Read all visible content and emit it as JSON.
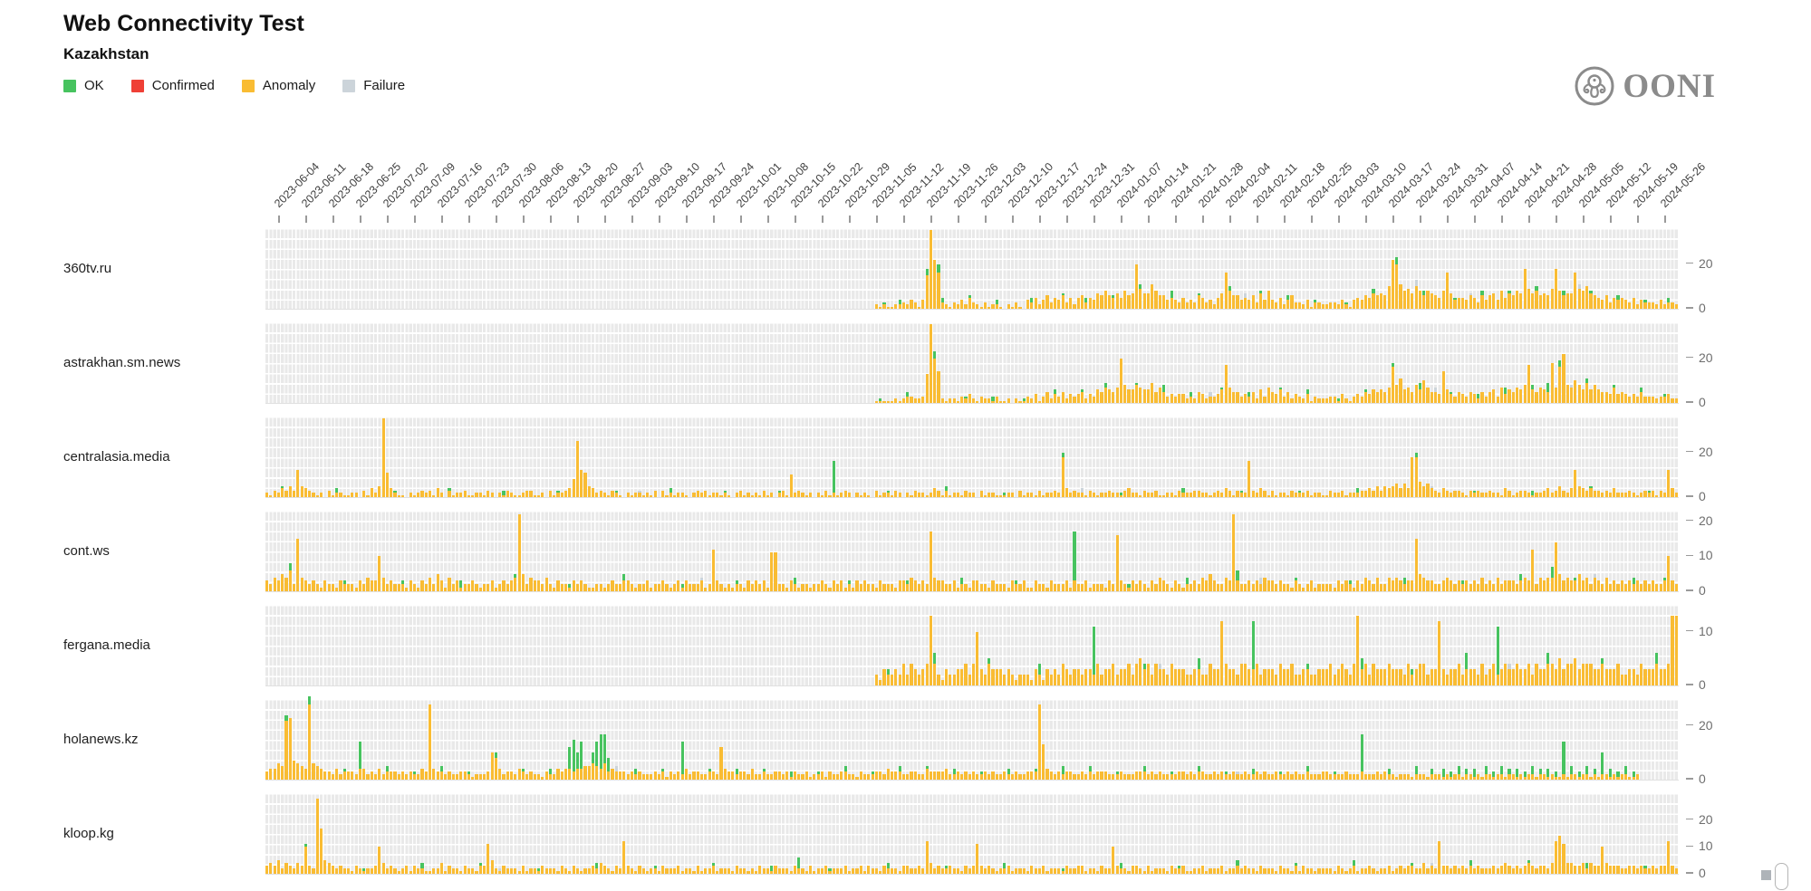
{
  "header": {
    "title": "Web Connectivity Test",
    "subtitle": "Kazakhstan"
  },
  "legend": {
    "items": [
      {
        "label": "OK",
        "color": "#47c35f"
      },
      {
        "label": "Confirmed",
        "color": "#ef4036"
      },
      {
        "label": "Anomaly",
        "color": "#f9bc33"
      },
      {
        "label": "Failure",
        "color": "#ccd4da"
      }
    ]
  },
  "logo": {
    "text": "OONI"
  },
  "colors": {
    "ok": "#47c35f",
    "confirmed": "#ef4036",
    "anomaly": "#f9bc33",
    "failure": "#ccd4da"
  },
  "chart_data": {
    "type": "bar",
    "stacking": [
      "anomaly",
      "ok",
      "failure"
    ],
    "x_start_date": "2023-06-01",
    "days": 364,
    "encoding": "each char of 'anomaly' is a base-36 daily measurement count starting at day 'offset'; 'ok'/'failure' are sparse {dayIndex:count} maps",
    "week_tick_dates": [
      "2023-06-04",
      "2023-06-11",
      "2023-06-18",
      "2023-06-25",
      "2023-07-02",
      "2023-07-09",
      "2023-07-16",
      "2023-07-23",
      "2023-07-30",
      "2023-08-06",
      "2023-08-13",
      "2023-08-20",
      "2023-08-27",
      "2023-09-03",
      "2023-09-10",
      "2023-09-17",
      "2023-09-24",
      "2023-10-01",
      "2023-10-08",
      "2023-10-15",
      "2023-10-22",
      "2023-10-29",
      "2023-11-05",
      "2023-11-12",
      "2023-11-19",
      "2023-11-26",
      "2023-12-03",
      "2023-12-10",
      "2023-12-17",
      "2023-12-24",
      "2023-12-31",
      "2024-01-07",
      "2024-01-14",
      "2024-01-21",
      "2024-01-28",
      "2024-02-04",
      "2024-02-11",
      "2024-02-18",
      "2024-02-25",
      "2024-03-03",
      "2024-03-10",
      "2024-03-17",
      "2024-03-24",
      "2024-03-31",
      "2024-04-07",
      "2024-04-14",
      "2024-04-21",
      "2024-04-28",
      "2024-05-05",
      "2024-05-12",
      "2024-05-19",
      "2024-05-26"
    ],
    "sites": [
      {
        "name": "360tv.ru",
        "ymax": 36,
        "yticks": [
          0,
          20
        ],
        "offset": 154,
        "anomaly": "000212112232431 4fzmg3213242532131221021310435246354635256354768657586 7k977b8664543534365342 57g866454637484352463324133223324214546576 76amkb897a8687658g74554653646748576 87i9786769i8677g98a765463545435243332423 32",
        "ok": {
          "159": 1,
          "163": 2,
          "170": 3,
          "173": 4,
          "174": 2,
          "181": 1,
          "188": 2,
          "197": 2,
          "205": 1,
          "211": 2,
          "218": 1,
          "225": 2,
          "233": 3,
          "240": 1,
          "248": 2,
          "256": 1,
          "263": 2,
          "270": 1,
          "278": 1,
          "285": 2,
          "291": 3,
          "298": 2,
          "306": 1,
          "313": 2,
          "320": 1,
          "327": 2,
          "334": 2,
          "341": 1,
          "348": 2,
          "355": 1,
          "361": 2
        },
        "failure": {
          "252": 2,
          "296": 3,
          "310": 1,
          "338": 2
        }
      },
      {
        "name": "astrakhan.sm.news",
        "ymax": 36,
        "yticks": [
          0,
          20
        ],
        "offset": 154,
        "anomaly": "0001111121233223dzke2122132421322131120211324135243524345243657657k8668766957534344232542334 6h755343526375463524324132223314213435465657g8b67586a7554e64354354253563746 5768h65765i7gm87a869686554745434353332334 22",
        "ok": {
          "158": 1,
          "165": 2,
          "172": 3,
          "180": 1,
          "187": 2,
          "195": 1,
          "203": 2,
          "210": 1,
          "216": 2,
          "224": 1,
          "231": 3,
          "238": 2,
          "246": 1,
          "253": 2,
          "261": 1,
          "268": 2,
          "276": 1,
          "283": 1,
          "290": 2,
          "297": 3,
          "305": 1,
          "312": 2,
          "319": 3,
          "326": 2,
          "330": 4,
          "333": 3,
          "340": 2,
          "347": 1,
          "354": 2,
          "360": 1
        },
        "failure": {
          "243": 2,
          "301": 2,
          "336": 1
        }
      },
      {
        "name": "centralasia.media",
        "ymax": 36,
        "yticks": [
          0,
          20
        ],
        "offset": 0,
        "anomaly": "21324353c54321203122112203142 5zb4211021232314203122311221320213211233112031223 48pcb54232132102122121303121221023231221210231212131202 31a23212021312123202121031221320213221243131221322031221112203122131223 2i4232213212232213422132231122132223322123243132 2g324313122132223122113223122233435354564 64ii756432432332132322322143123321223423532 4c5434332324222321232313 2c42",
        "ok": {
          "4": 1,
          "18": 2,
          "33": 1,
          "47": 1,
          "61": 2,
          "75": 1,
          "90": 1,
          "104": 2,
          "118": 1,
          "132": 1,
          "146": 14,
          "160": 1,
          "175": 2,
          "190": 1,
          "205": 2,
          "220": 1,
          "236": 2,
          "251": 1,
          "266": 1,
          "281": 2,
          "296": 2,
          "311": 1,
          "326": 2,
          "341": 1,
          "356": 1
        },
        "failure": {
          "96": 1,
          "210": 2,
          "300": 1
        }
      },
      {
        "name": "cont.ws",
        "ymax": 23,
        "yticks": [
          0,
          10,
          20
        ],
        "offset": 0,
        "anomaly": "32435462f4323213221322213243 3a4232221321324253142312232122312323 4m524332421322132321122123223321223122321231322231 2c3212122132 3231bb2213212212232132312132322132221332432 32h43322312213322132221322311322132223132231222132g32132321324321321223243532 243m3223232433232213212312222132321324324224343233f5433223432323232423242333234 3c24344e53433534243242323232323232 23a3232",
        "ok": {
          "6": 2,
          "20": 1,
          "35": 1,
          "50": 2,
          "64": 1,
          "78": 1,
          "92": 2,
          "107": 1,
          "121": 1,
          "136": 2,
          "150": 1,
          "165": 1,
          "179": 2,
          "193": 1,
          "208": 14,
          "222": 1,
          "237": 2,
          "250": 3,
          "265": 1,
          "279": 1,
          "293": 2,
          "308": 1,
          "323": 2,
          "331": 3,
          "337": 1,
          "352": 2,
          "360": 1
        },
        "failure": {
          "112": 1,
          "256": 2,
          "342": 1
        }
      },
      {
        "name": "fergana.media",
        "ymax": 15,
        "yticks": [
          0,
          10
        ],
        "offset": 154,
        "anomaly": "00021322324243 234d4213223342 4a3243332321222132132324323323324233423342453424332433322332243 3c43324433423332433422332233342343 24d3424333433324234423 3c3233423332423423433433424334435344534443343334223324 33343 34dd",
        "ok": {
          "160": 1,
          "172": 2,
          "186": 1,
          "199": 2,
          "213": 9,
          "226": 1,
          "240": 2,
          "254": 9,
          "268": 1,
          "282": 2,
          "295": 1,
          "309": 3,
          "317": 9,
          "330": 2,
          "344": 1,
          "358": 2
        },
        "failure": {
          "230": 1,
          "320": 1
        }
      },
      {
        "name": "holanews.kz",
        "ymax": 30,
        "yticks": [
          0,
          20
        ],
        "offset": 0,
        "anomaly": "34465mn7654s654332423332442324233323232243s43323223321222 3a8423324323221322434434455654634333232322232313232423322332c433233242232233231322312231322332213222332433322332243333422323232 23232232232233 3sd43232332232323332223222333232322223323233223232232232232322322323223222332222322232223232212221222122212122122121221221 2212122122121121221221212212122112",
        "ok": {
          "5": 2,
          "11": 3,
          "20": 1,
          "24": 10,
          "31": 2,
          "38": 1,
          "45": 2,
          "52": 1,
          "59": 2,
          "66": 1,
          "73": 2,
          "78": 8,
          "79": 12,
          "80": 6,
          "81": 10,
          "84": 4,
          "85": 9,
          "86": 13,
          "87": 11,
          "88": 5,
          "95": 2,
          "102": 1,
          "107": 12,
          "114": 1,
          "121": 2,
          "128": 1,
          "135": 2,
          "142": 1,
          "149": 2,
          "156": 1,
          "163": 2,
          "170": 1,
          "177": 2,
          "184": 1,
          "191": 2,
          "198": 1,
          "205": 3,
          "212": 2,
          "219": 1,
          "226": 2,
          "233": 1,
          "240": 2,
          "247": 1,
          "254": 2,
          "261": 1,
          "268": 2,
          "275": 1,
          "282": 14,
          "289": 2,
          "296": 3,
          "300": 2,
          "303": 3,
          "305": 2,
          "307": 3,
          "309": 2,
          "311": 3,
          "314": 3,
          "316": 2,
          "318": 3,
          "320": 2,
          "322": 3,
          "324": 2,
          "326": 3,
          "328": 2,
          "330": 3,
          "332": 2,
          "334": 12,
          "336": 3,
          "338": 2,
          "340": 3,
          "342": 2,
          "344": 8,
          "346": 3,
          "348": 2,
          "350": 3,
          "352": 2,
          "354": 3,
          "356": 2,
          "358": 3,
          "360": 2,
          "362": 3
        },
        "failure": {
          "90": 2,
          "250": 1
        }
      },
      {
        "name": "kloop.kg",
        "ymax": 30,
        "yticks": [
          0,
          10,
          20
        ],
        "offset": 0,
        "anomaly": "3435243243a32sh5432322132122 3a42321231322112241322132213 3b5213222131221322213213212232432132c32132122132223122131223122213221213221322213221312231222312231322132221332232c42322322132 3b323212231222132231222132233122132 2a3221332131222132231122312223122323221322213221313221222213212312232122312323322423 2c33232323232223234323234323324ceb44334243 3a4333223323223233c32",
        "ok": {
          "10": 1,
          "25": 1,
          "40": 2,
          "55": 1,
          "70": 1,
          "85": 2,
          "100": 1,
          "115": 1,
          "130": 2,
          "137": 4,
          "145": 1,
          "160": 2,
          "175": 1,
          "190": 2,
          "205": 1,
          "220": 2,
          "235": 1,
          "250": 2,
          "265": 1,
          "280": 2,
          "295": 1,
          "310": 2,
          "325": 1,
          "340": 2,
          "355": 1
        },
        "failure": {
          "60": 1,
          "300": 1
        }
      }
    ]
  }
}
